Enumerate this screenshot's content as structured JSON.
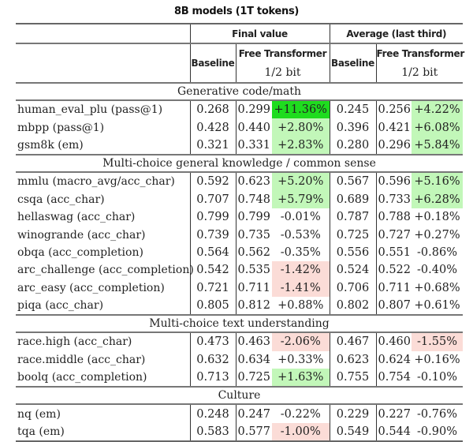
{
  "title": "8B models (1T tokens)",
  "headers": {
    "final_value": "Final value",
    "average": "Average (last third)",
    "baseline": "Baseline",
    "free_transformer": "Free Transformer",
    "bit": "1/2 bit"
  },
  "colors": {
    "strong_green": "#1fdc1f",
    "light_green": "#c2f7b9",
    "light_red": "#fbdcd7"
  },
  "sections": [
    {
      "name": "Generative code/math",
      "rows": [
        {
          "task": "human_eval_plu (pass@1)",
          "b1": "0.268",
          "f1": "0.299",
          "p1": "+11.36%",
          "c1": "strong_green",
          "b2": "0.245",
          "f2": "0.256",
          "p2": "+4.22%",
          "c2": "light_green"
        },
        {
          "task": "mbpp (pass@1)",
          "b1": "0.428",
          "f1": "0.440",
          "p1": "+2.80%",
          "c1": "light_green",
          "b2": "0.396",
          "f2": "0.421",
          "p2": "+6.08%",
          "c2": "light_green"
        },
        {
          "task": "gsm8k (em)",
          "b1": "0.321",
          "f1": "0.331",
          "p1": "+2.83%",
          "c1": "light_green",
          "b2": "0.280",
          "f2": "0.296",
          "p2": "+5.84%",
          "c2": "light_green"
        }
      ]
    },
    {
      "name": "Multi-choice general knowledge / common sense",
      "rows": [
        {
          "task": "mmlu (macro_avg/acc_char)",
          "b1": "0.592",
          "f1": "0.623",
          "p1": "+5.20%",
          "c1": "light_green",
          "b2": "0.567",
          "f2": "0.596",
          "p2": "+5.16%",
          "c2": "light_green"
        },
        {
          "task": "csqa (acc_char)",
          "b1": "0.707",
          "f1": "0.748",
          "p1": "+5.79%",
          "c1": "light_green",
          "b2": "0.689",
          "f2": "0.733",
          "p2": "+6.28%",
          "c2": "light_green"
        },
        {
          "task": "hellaswag (acc_char)",
          "b1": "0.799",
          "f1": "0.799",
          "p1": "-0.01%",
          "c1": "",
          "b2": "0.787",
          "f2": "0.788",
          "p2": "+0.18%",
          "c2": ""
        },
        {
          "task": "winogrande (acc_char)",
          "b1": "0.739",
          "f1": "0.735",
          "p1": "-0.53%",
          "c1": "",
          "b2": "0.725",
          "f2": "0.727",
          "p2": "+0.27%",
          "c2": ""
        },
        {
          "task": "obqa (acc_completion)",
          "b1": "0.564",
          "f1": "0.562",
          "p1": "-0.35%",
          "c1": "",
          "b2": "0.556",
          "f2": "0.551",
          "p2": "-0.86%",
          "c2": ""
        },
        {
          "task": "arc_challenge (acc_completion)",
          "b1": "0.542",
          "f1": "0.535",
          "p1": "-1.42%",
          "c1": "light_red",
          "b2": "0.524",
          "f2": "0.522",
          "p2": "-0.40%",
          "c2": ""
        },
        {
          "task": "arc_easy (acc_completion)",
          "b1": "0.721",
          "f1": "0.711",
          "p1": "-1.41%",
          "c1": "light_red",
          "b2": "0.706",
          "f2": "0.711",
          "p2": "+0.68%",
          "c2": ""
        },
        {
          "task": "piqa (acc_char)",
          "b1": "0.805",
          "f1": "0.812",
          "p1": "+0.88%",
          "c1": "",
          "b2": "0.802",
          "f2": "0.807",
          "p2": "+0.61%",
          "c2": ""
        }
      ]
    },
    {
      "name": "Multi-choice text understanding",
      "rows": [
        {
          "task": "race.high (acc_char)",
          "b1": "0.473",
          "f1": "0.463",
          "p1": "-2.06%",
          "c1": "light_red",
          "b2": "0.467",
          "f2": "0.460",
          "p2": "-1.55%",
          "c2": "light_red"
        },
        {
          "task": "race.middle (acc_char)",
          "b1": "0.632",
          "f1": "0.634",
          "p1": "+0.33%",
          "c1": "",
          "b2": "0.623",
          "f2": "0.624",
          "p2": "+0.16%",
          "c2": ""
        },
        {
          "task": "boolq (acc_completion)",
          "b1": "0.713",
          "f1": "0.725",
          "p1": "+1.63%",
          "c1": "light_green",
          "b2": "0.755",
          "f2": "0.754",
          "p2": "-0.10%",
          "c2": ""
        }
      ]
    },
    {
      "name": "Culture",
      "rows": [
        {
          "task": "nq (em)",
          "b1": "0.248",
          "f1": "0.247",
          "p1": "-0.22%",
          "c1": "",
          "b2": "0.229",
          "f2": "0.227",
          "p2": "-0.76%",
          "c2": ""
        },
        {
          "task": "tqa (em)",
          "b1": "0.583",
          "f1": "0.577",
          "p1": "-1.00%",
          "c1": "light_red",
          "b2": "0.549",
          "f2": "0.544",
          "p2": "-0.90%",
          "c2": ""
        }
      ]
    }
  ]
}
